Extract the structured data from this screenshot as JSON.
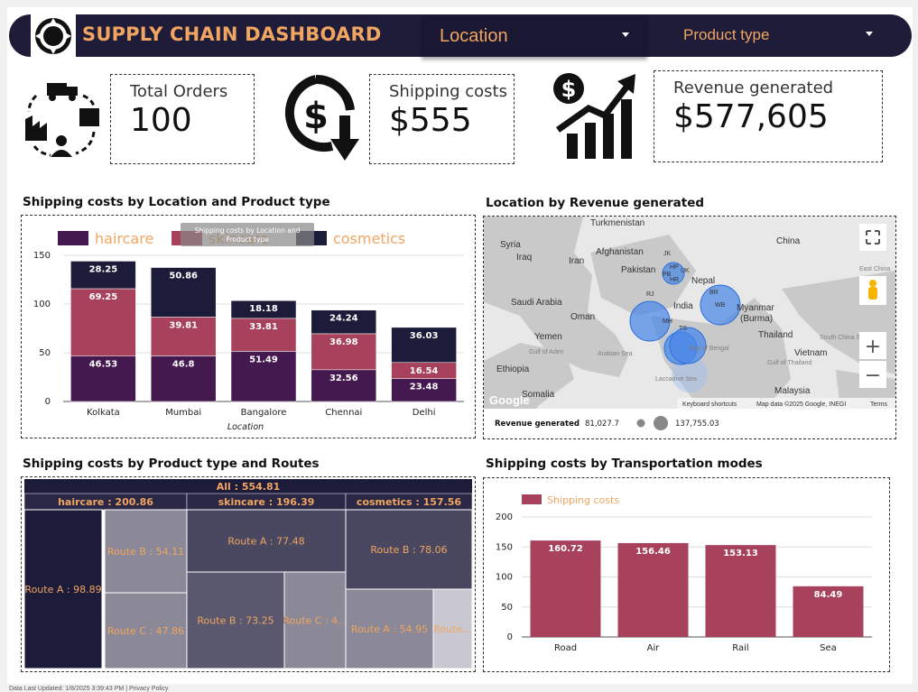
{
  "header": {
    "title": "SUPPLY CHAIN DASHBOARD",
    "filter_location": "Location",
    "filter_product": "Product type"
  },
  "kpis": {
    "orders_label": "Total Orders",
    "orders_value": "100",
    "shipping_label": "Shipping costs",
    "shipping_value": "$555",
    "revenue_label": "Revenue generated",
    "revenue_value": "$577,605"
  },
  "sections": {
    "stacked_title": "Shipping costs by Location and Product type",
    "map_title": "Location by Revenue generated",
    "treemap_title": "Shipping costs by Product type and Routes",
    "modes_title": "Shipping costs by Transportation modes"
  },
  "tooltip": {
    "line1": "Shipping costs by Location and",
    "line2": "Product type"
  },
  "chart_data": [
    {
      "type": "bar",
      "title": "Shipping costs by Location and Product type",
      "xlabel": "Location",
      "categories": [
        "Kolkata",
        "Mumbai",
        "Bangalore",
        "Chennai",
        "Delhi"
      ],
      "ylim": [
        0,
        150
      ],
      "yticks": [
        0,
        50,
        100,
        150
      ],
      "stacked": true,
      "legend_position": "top",
      "series": [
        {
          "name": "haircare",
          "color": "#44194f",
          "values": [
            46.53,
            46.8,
            51.49,
            32.56,
            23.48
          ]
        },
        {
          "name": "skincare",
          "color": "#a8415b",
          "values": [
            69.25,
            39.81,
            33.81,
            36.98,
            16.54
          ]
        },
        {
          "name": "cosmetics",
          "color": "#1d1b3a",
          "values": [
            28.25,
            50.86,
            18.18,
            24.24,
            36.03
          ]
        }
      ]
    },
    {
      "type": "bar",
      "title": "Shipping costs by Transportation modes",
      "categories": [
        "Road",
        "Air",
        "Rail",
        "Sea"
      ],
      "ylim": [
        0,
        200
      ],
      "yticks": [
        0,
        50,
        100,
        150,
        200
      ],
      "legend_position": "top-left",
      "series": [
        {
          "name": "Shipping costs",
          "color": "#a8415b",
          "values": [
            160.72,
            156.46,
            153.13,
            84.49
          ]
        }
      ]
    },
    {
      "type": "treemap",
      "title": "Shipping costs by Product type and Routes",
      "root": "All : 554.81",
      "groups": [
        {
          "label": "haircare : 200.86",
          "items": [
            "Route A : 98.89",
            "Route B : 54.11",
            "Route C : 47.86"
          ]
        },
        {
          "label": "skincare : 196.39",
          "items": [
            "Route A : 77.48",
            "Route B : 73.25",
            "Route C : 4..."
          ]
        },
        {
          "label": "cosmetics : 157.56",
          "items": [
            "Route B : 78.06",
            "Route A : 54.95",
            "Route..."
          ]
        }
      ]
    }
  ],
  "map": {
    "labels": [
      "Turkmenistan",
      "China",
      "Syria",
      "Afghanistan",
      "Iraq",
      "Iran",
      "Pakistan",
      "Nepal",
      "Saudi Arabia",
      "India",
      "Oman",
      "Myanmar",
      "(Burma)",
      "Yemen",
      "Thailand",
      "Gulf of Aden",
      "Arabian Sea",
      "Bay of Bengal",
      "Vietnam",
      "Ethiopia",
      "Laccadive Sea",
      "Somalia",
      "Malaysia",
      "East China",
      "South China Sea",
      "Gulf of Thailand",
      "JK",
      "HP",
      "UK",
      "PB",
      "HR",
      "RJ",
      "MH",
      "TS",
      "BR",
      "WB",
      "Google"
    ],
    "attribution": [
      "Keyboard shortcuts",
      "Map data ©2025 Google, INEGI",
      "Terms"
    ],
    "legend_label": "Revenue generated",
    "legend_min": "81,027.7",
    "legend_max": "137,755.03",
    "zoom_in": "+",
    "zoom_out": "−"
  },
  "footer": "Data Last Updated: 1/8/2025 3:39:43 PM | Privacy Policy"
}
